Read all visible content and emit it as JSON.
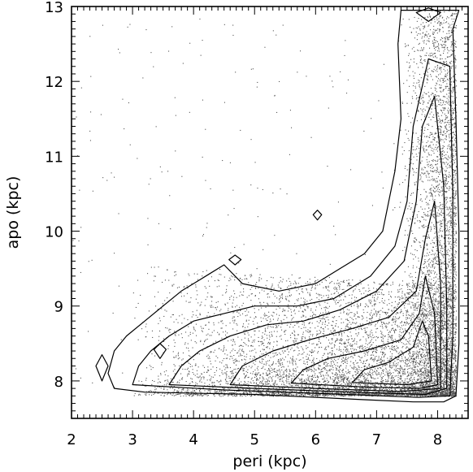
{
  "chart_data": {
    "type": "scatter",
    "title": "",
    "xlabel": "peri (kpc)",
    "ylabel": "apo (kpc)",
    "xlim": [
      2.0,
      8.5
    ],
    "ylim": [
      7.5,
      13.0
    ],
    "xticks": [
      2,
      3,
      4,
      5,
      6,
      7,
      8
    ],
    "yticks": [
      8,
      9,
      10,
      11,
      12,
      13
    ],
    "grid": false,
    "legend": "none",
    "point_color": "#555555",
    "contour_color": "#000000",
    "description_of_distribution": {
      "main_band": {
        "x": [
          3.0,
          8.2
        ],
        "y_floor": 7.8
      },
      "vertical_band": {
        "x": [
          7.3,
          8.3
        ],
        "y": [
          7.8,
          13.0
        ]
      }
    },
    "contours": [
      {
        "level": 1,
        "points": [
          [
            2.7,
            7.9
          ],
          [
            3.2,
            7.85
          ],
          [
            5.0,
            7.82
          ],
          [
            6.8,
            7.75
          ],
          [
            7.6,
            7.72
          ],
          [
            8.1,
            7.72
          ],
          [
            8.3,
            7.8
          ],
          [
            8.35,
            8.5
          ],
          [
            8.35,
            10.0
          ],
          [
            8.3,
            11.5
          ],
          [
            8.25,
            12.7
          ],
          [
            8.35,
            12.95
          ],
          [
            7.4,
            12.95
          ],
          [
            7.35,
            12.5
          ],
          [
            7.4,
            11.5
          ],
          [
            7.3,
            10.8
          ],
          [
            7.1,
            10.0
          ],
          [
            6.8,
            9.7
          ],
          [
            6.4,
            9.5
          ],
          [
            6.0,
            9.3
          ],
          [
            5.4,
            9.2
          ],
          [
            4.8,
            9.3
          ],
          [
            4.5,
            9.55
          ],
          [
            4.1,
            9.35
          ],
          [
            3.8,
            9.2
          ],
          [
            3.5,
            9.0
          ],
          [
            3.2,
            8.8
          ],
          [
            2.9,
            8.6
          ],
          [
            2.7,
            8.4
          ],
          [
            2.6,
            8.1
          ],
          [
            2.7,
            7.9
          ]
        ]
      },
      {
        "level": 2,
        "points": [
          [
            3.0,
            7.95
          ],
          [
            4.5,
            7.88
          ],
          [
            6.5,
            7.82
          ],
          [
            7.7,
            7.78
          ],
          [
            8.2,
            7.8
          ],
          [
            8.25,
            8.6
          ],
          [
            8.25,
            10.5
          ],
          [
            8.2,
            12.2
          ],
          [
            7.85,
            12.3
          ],
          [
            7.6,
            11.4
          ],
          [
            7.5,
            10.4
          ],
          [
            7.3,
            9.8
          ],
          [
            6.9,
            9.4
          ],
          [
            6.3,
            9.1
          ],
          [
            5.7,
            9.0
          ],
          [
            5.0,
            9.0
          ],
          [
            4.5,
            8.9
          ],
          [
            4.0,
            8.8
          ],
          [
            3.6,
            8.6
          ],
          [
            3.3,
            8.4
          ],
          [
            3.1,
            8.2
          ],
          [
            3.0,
            7.95
          ]
        ]
      },
      {
        "level": 3,
        "points": [
          [
            3.6,
            7.95
          ],
          [
            5.0,
            7.9
          ],
          [
            6.6,
            7.85
          ],
          [
            7.8,
            7.82
          ],
          [
            8.15,
            7.9
          ],
          [
            8.15,
            9.0
          ],
          [
            8.1,
            10.6
          ],
          [
            7.95,
            11.8
          ],
          [
            7.75,
            11.4
          ],
          [
            7.65,
            10.4
          ],
          [
            7.45,
            9.6
          ],
          [
            7.0,
            9.2
          ],
          [
            6.4,
            8.95
          ],
          [
            5.8,
            8.8
          ],
          [
            5.2,
            8.75
          ],
          [
            4.6,
            8.6
          ],
          [
            4.1,
            8.4
          ],
          [
            3.8,
            8.2
          ],
          [
            3.6,
            7.95
          ]
        ]
      },
      {
        "level": 4,
        "points": [
          [
            4.6,
            7.95
          ],
          [
            6.0,
            7.9
          ],
          [
            7.4,
            7.86
          ],
          [
            8.05,
            7.9
          ],
          [
            8.05,
            9.3
          ],
          [
            7.95,
            10.4
          ],
          [
            7.8,
            9.9
          ],
          [
            7.65,
            9.2
          ],
          [
            7.2,
            8.85
          ],
          [
            6.6,
            8.7
          ],
          [
            5.9,
            8.55
          ],
          [
            5.3,
            8.4
          ],
          [
            4.8,
            8.2
          ],
          [
            4.6,
            7.95
          ]
        ]
      },
      {
        "level": 5,
        "points": [
          [
            5.6,
            7.97
          ],
          [
            6.8,
            7.92
          ],
          [
            7.7,
            7.9
          ],
          [
            8.0,
            7.95
          ],
          [
            7.95,
            8.9
          ],
          [
            7.8,
            9.4
          ],
          [
            7.7,
            8.9
          ],
          [
            7.4,
            8.55
          ],
          [
            6.8,
            8.4
          ],
          [
            6.2,
            8.3
          ],
          [
            5.8,
            8.15
          ],
          [
            5.6,
            7.97
          ]
        ]
      },
      {
        "level": 6,
        "points": [
          [
            6.6,
            7.98
          ],
          [
            7.5,
            7.95
          ],
          [
            7.9,
            8.0
          ],
          [
            7.85,
            8.6
          ],
          [
            7.75,
            8.8
          ],
          [
            7.6,
            8.45
          ],
          [
            7.2,
            8.25
          ],
          [
            6.8,
            8.15
          ],
          [
            6.6,
            7.98
          ]
        ]
      },
      {
        "level": 7,
        "points": [
          [
            2.5,
            8.0
          ],
          [
            2.6,
            8.2
          ],
          [
            2.5,
            8.35
          ],
          [
            2.4,
            8.2
          ],
          [
            2.5,
            8.0
          ]
        ]
      },
      {
        "level": 7,
        "points": [
          [
            4.68,
            9.55
          ],
          [
            4.78,
            9.62
          ],
          [
            4.68,
            9.68
          ],
          [
            4.58,
            9.62
          ],
          [
            4.68,
            9.55
          ]
        ]
      },
      {
        "level": 7,
        "points": [
          [
            3.45,
            8.3
          ],
          [
            3.55,
            8.42
          ],
          [
            3.45,
            8.5
          ],
          [
            3.35,
            8.42
          ],
          [
            3.45,
            8.3
          ]
        ]
      },
      {
        "level": 7,
        "points": [
          [
            7.85,
            12.8
          ],
          [
            8.05,
            12.92
          ],
          [
            7.85,
            12.98
          ],
          [
            7.65,
            12.92
          ],
          [
            7.85,
            12.8
          ]
        ]
      },
      {
        "level": 7,
        "points": [
          [
            6.03,
            10.15
          ],
          [
            6.1,
            10.22
          ],
          [
            6.03,
            10.28
          ],
          [
            5.96,
            10.22
          ],
          [
            6.03,
            10.15
          ]
        ]
      }
    ]
  }
}
